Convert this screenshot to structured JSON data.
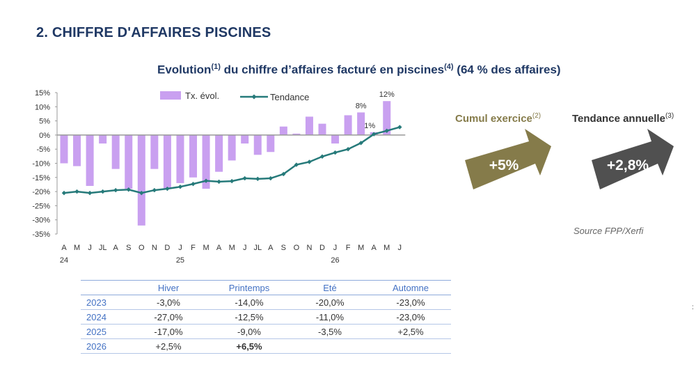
{
  "section_title": "2. CHIFFRE D'AFFAIRES PISCINES",
  "chart_title": {
    "main": "Evolution",
    "sup1": "(1)",
    "mid": " du chiffre d’affaires facturé en piscines",
    "sup2": "(4)",
    "tail": " (64 % des affaires)"
  },
  "chart_data": {
    "type": "bar",
    "categories": [
      "A",
      "M",
      "J",
      "JL",
      "A",
      "S",
      "O",
      "N",
      "D",
      "J",
      "F",
      "M",
      "A",
      "M",
      "J",
      "JL",
      "A",
      "S",
      "O",
      "N",
      "D",
      "J",
      "F",
      "M",
      "A",
      "M",
      "J"
    ],
    "year_labels": [
      {
        "index": 0,
        "label": "24"
      },
      {
        "index": 9,
        "label": "25"
      },
      {
        "index": 21,
        "label": "26"
      }
    ],
    "series": [
      {
        "name": "Tx. évol.",
        "type": "bar",
        "color": "#c9a0f0",
        "values": [
          -10,
          -11,
          -18,
          -3,
          -12,
          -19,
          -32,
          -12,
          -19,
          -17,
          -15,
          -19,
          -13,
          -9,
          -3,
          -7,
          -6,
          3,
          0.5,
          6.5,
          4,
          -3,
          7,
          8,
          1,
          12,
          null
        ]
      },
      {
        "name": "Tendance",
        "type": "line",
        "color": "#267a7a",
        "values": [
          -20.5,
          -20,
          -20.5,
          -20,
          -19.5,
          -19.3,
          -20.5,
          -19.5,
          -19,
          -18.3,
          -17.3,
          -16.2,
          -16.5,
          -16.3,
          -15.3,
          -15.5,
          -15.3,
          -13.8,
          -10.5,
          -9.5,
          -7.6,
          -6.2,
          -5,
          -2.8,
          0.3,
          1.5,
          2.8
        ]
      }
    ],
    "value_labels": [
      {
        "index": 23,
        "text": "8%"
      },
      {
        "index": 24,
        "text": "1%"
      },
      {
        "index": 25,
        "text": "12%"
      }
    ],
    "ylim": [
      -35,
      15
    ],
    "yticks": [
      15,
      10,
      5,
      0,
      -5,
      -10,
      -15,
      -20,
      -25,
      -30,
      -35
    ],
    "ytick_labels": [
      "15%",
      "10%",
      "5%",
      "0%",
      "-5%",
      "-10%",
      "-15%",
      "-20%",
      "-25%",
      "-30%",
      "-35%"
    ],
    "legend_position": "top",
    "grid": false,
    "xlabel": "",
    "ylabel": "",
    "title": ""
  },
  "cumul": {
    "label": "Cumul exercice",
    "sup": "(2)",
    "value": "+5%",
    "color": "#857b4a",
    "label_color": "#857b4a"
  },
  "tendance": {
    "label": "Tendance annuelle",
    "sup": "(3)",
    "value": "+2,8%",
    "color": "#505050",
    "label_color": "#333333"
  },
  "source": "Source FPP/Xerfi",
  "table": {
    "headers": [
      "",
      "Hiver",
      "Printemps",
      "Eté",
      "Automne"
    ],
    "rows": [
      {
        "year": "2023",
        "hiver": "-3,0%",
        "printemps": "-14,0%",
        "ete": "-20,0%",
        "automne": "-23,0%"
      },
      {
        "year": "2024",
        "hiver": "-27,0%",
        "printemps": "-12,5%",
        "ete": "-11,0%",
        "automne": "-23,0%"
      },
      {
        "year": "2025",
        "hiver": "-17,0%",
        "printemps": "-9,0%",
        "ete": "-3,5%",
        "automne": "+2,5%"
      },
      {
        "year": "2026",
        "hiver": "+2,5%",
        "printemps": "+6,5%",
        "ete": "",
        "automne": ""
      }
    ]
  },
  "stray_mark": ":"
}
